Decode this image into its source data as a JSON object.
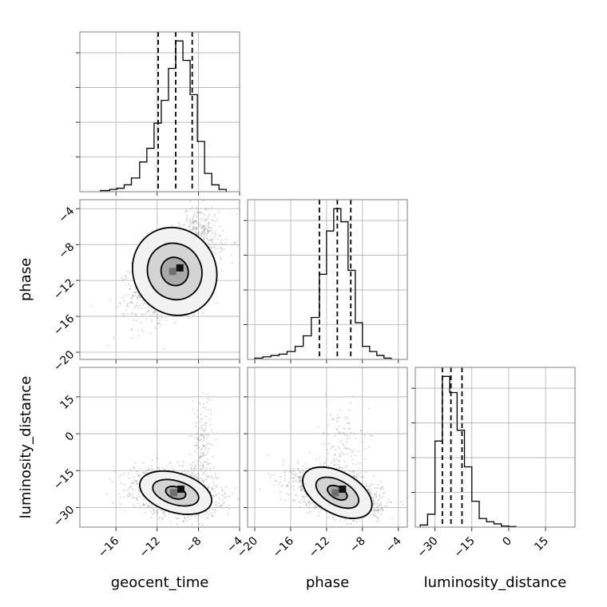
{
  "chart_data": {
    "type": "corner",
    "grid": true,
    "parameters": [
      "geocent_time",
      "phase",
      "luminosity_distance"
    ],
    "axis_labels": {
      "x": [
        "geocent_time",
        "phase",
        "luminosity_distance"
      ],
      "y": [
        "",
        "phase",
        "luminosity_distance"
      ]
    },
    "ranges": {
      "geocent_time": [
        -19.5,
        -4
      ],
      "phase": [
        -20.8,
        -3
      ],
      "luminosity_distance": [
        -38,
        27
      ]
    },
    "ticks": {
      "geocent_time": {
        "values": [
          -16,
          -12,
          -8,
          -4
        ],
        "labels": [
          "−16",
          "−12",
          "−8",
          "−4"
        ]
      },
      "phase": {
        "values": [
          -20,
          -16,
          -12,
          -8,
          -4
        ],
        "labels": [
          "−20",
          "−16",
          "−12",
          "−8",
          "−4"
        ]
      },
      "luminosity_distance": {
        "values": [
          -30,
          -15,
          0,
          15
        ],
        "labels": [
          "−30",
          "−15",
          "0",
          "15"
        ]
      }
    },
    "quantiles": {
      "geocent_time": [
        -11.9,
        -10.2,
        -8.6
      ],
      "phase": [
        -12.8,
        -10.8,
        -9.3
      ],
      "luminosity_distance": [
        -27,
        -23.5,
        -19
      ]
    },
    "histograms": {
      "geocent_time": {
        "edges": [
          -17.5,
          -16.6,
          -15.9,
          -15.2,
          -14.5,
          -13.7,
          -13.0,
          -12.3,
          -11.6,
          -10.9,
          -10.2,
          -9.5,
          -8.8,
          -8.1,
          -7.4,
          -6.7,
          -6.0,
          -5.3
        ],
        "counts": [
          1,
          2,
          3,
          6,
          12,
          26,
          38,
          60,
          80,
          108,
          132,
          115,
          85,
          44,
          16,
          6,
          2
        ]
      },
      "phase": {
        "edges": [
          -20.0,
          -19.1,
          -18.2,
          -17.3,
          -16.4,
          -15.5,
          -14.6,
          -13.7,
          -12.8,
          -12.0,
          -11.2,
          -10.4,
          -9.6,
          -8.8,
          -8.0,
          -7.2,
          -6.4,
          -5.6,
          -4.8
        ],
        "counts": [
          1,
          2,
          3,
          4,
          6,
          10,
          18,
          32,
          65,
          98,
          115,
          105,
          68,
          28,
          10,
          6,
          3,
          1
        ]
      },
      "luminosity_distance": {
        "edges": [
          -36,
          -33,
          -30,
          -27,
          -24,
          -21,
          -18,
          -15,
          -12,
          -9,
          -6,
          -3,
          0,
          3
        ],
        "counts": [
          2,
          12,
          80,
          140,
          125,
          90,
          56,
          24,
          8,
          5,
          3,
          1,
          0.5
        ]
      }
    },
    "pairs": [
      {
        "x": "geocent_time",
        "y": "phase",
        "center": [
          -10.3,
          -11.0
        ],
        "sigma": [
          2.0,
          2.4
        ],
        "rho": 0.5,
        "extra_scatter": [
          {
            "center": [
              -8.0,
              -6.0
            ],
            "spread": [
              0.8,
              1.2
            ],
            "n": 150
          }
        ],
        "contour_levels": [
          {
            "rx": 1.3,
            "ry": 1.6
          },
          {
            "rx": 2.6,
            "ry": 3.2
          },
          {
            "rx": 4.0,
            "ry": 5.0
          }
        ]
      },
      {
        "x": "geocent_time",
        "y": "luminosity_distance",
        "center": [
          -10.2,
          -24.0
        ],
        "sigma": [
          2.0,
          4.5
        ],
        "rho": -0.25,
        "extra_scatter": [
          {
            "center": [
              -7.6,
              -5.0
            ],
            "spread": [
              0.5,
              11.0
            ],
            "n": 170
          }
        ],
        "contour_levels": [
          {
            "rx": 1.0,
            "ry": 2.4
          },
          {
            "rx": 2.3,
            "ry": 4.8
          },
          {
            "rx": 3.6,
            "ry": 8.0
          }
        ]
      },
      {
        "x": "phase",
        "y": "luminosity_distance",
        "center": [
          -10.8,
          -24.0
        ],
        "sigma": [
          2.4,
          4.5
        ],
        "rho": -0.45,
        "extra_scatter": [
          {
            "center": [
              -10.5,
              -8.0
            ],
            "spread": [
              1.2,
              10.0
            ],
            "n": 160
          }
        ],
        "contour_levels": [
          {
            "rx": 1.2,
            "ry": 2.4
          },
          {
            "rx": 2.6,
            "ry": 5.0
          },
          {
            "rx": 4.2,
            "ry": 8.5
          }
        ]
      }
    ]
  }
}
